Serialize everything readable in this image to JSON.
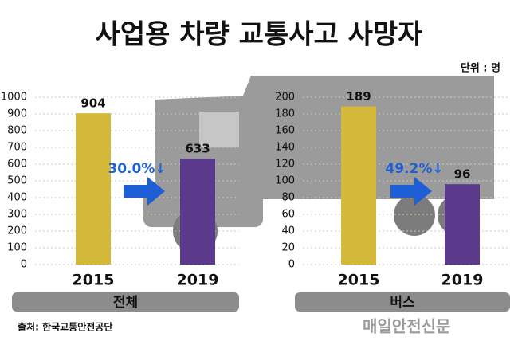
{
  "header": {
    "title": "사업용 차량 교통사고 사망자",
    "unit": "단위 : 명"
  },
  "chart_data": [
    {
      "type": "bar",
      "label": "전체",
      "annotation": "30.0%↓",
      "categories": [
        "2015",
        "2019"
      ],
      "values": [
        904,
        633
      ],
      "colors": [
        "#d4b83a",
        "#5b3a8c"
      ],
      "ylim": [
        0,
        1000
      ],
      "yticks": [
        0,
        100,
        200,
        300,
        400,
        500,
        600,
        700,
        800,
        900,
        1000
      ],
      "grid": true
    },
    {
      "type": "bar",
      "label": "버스",
      "annotation": "49.2%↓",
      "categories": [
        "2015",
        "2019"
      ],
      "values": [
        189,
        96
      ],
      "colors": [
        "#d4b83a",
        "#5b3a8c"
      ],
      "ylim": [
        0,
        200
      ],
      "yticks": [
        0,
        20,
        40,
        60,
        80,
        100,
        120,
        140,
        160,
        180,
        200
      ],
      "grid": true
    }
  ],
  "footer": {
    "source": "출처: 한국교통안전공단",
    "watermark": "매일안전신문"
  }
}
